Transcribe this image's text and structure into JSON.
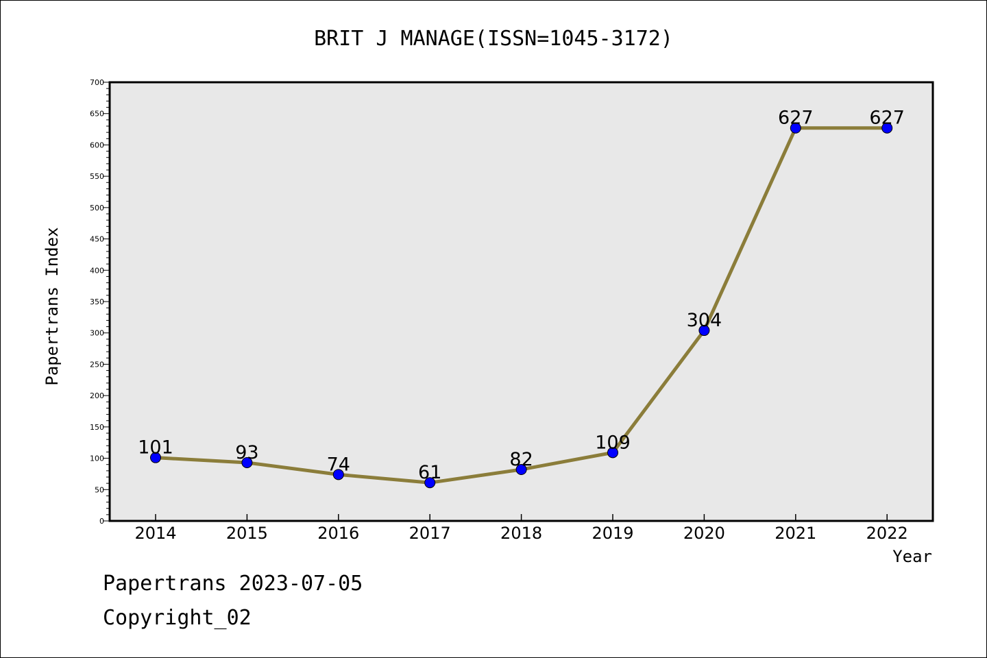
{
  "chart_data": {
    "type": "line",
    "title": "BRIT J MANAGE(ISSN=1045-3172)",
    "xlabel": "Year",
    "ylabel": "Papertrans Index",
    "categories": [
      "2014",
      "2015",
      "2016",
      "2017",
      "2018",
      "2019",
      "2020",
      "2021",
      "2022"
    ],
    "series": [
      {
        "values": [
          101,
          93,
          74,
          61,
          82,
          109,
          304,
          627,
          627
        ],
        "line_color": "#8b7d3a",
        "marker_color": "#0000ff"
      }
    ],
    "data_labels": [
      "101",
      "93",
      "74",
      "61",
      "82",
      "109",
      "304",
      "627",
      "627"
    ],
    "ylim": [
      0,
      700
    ],
    "y_ticks": [
      "0",
      "50",
      "100",
      "150",
      "200",
      "250",
      "300",
      "350",
      "400",
      "450",
      "500",
      "550",
      "600",
      "650",
      "700"
    ],
    "grid": false,
    "legend": "none",
    "plot_background": "#e8e8e8"
  },
  "footer": {
    "line1": "Papertrans 2023-07-05",
    "line2": "Copyright_02"
  }
}
